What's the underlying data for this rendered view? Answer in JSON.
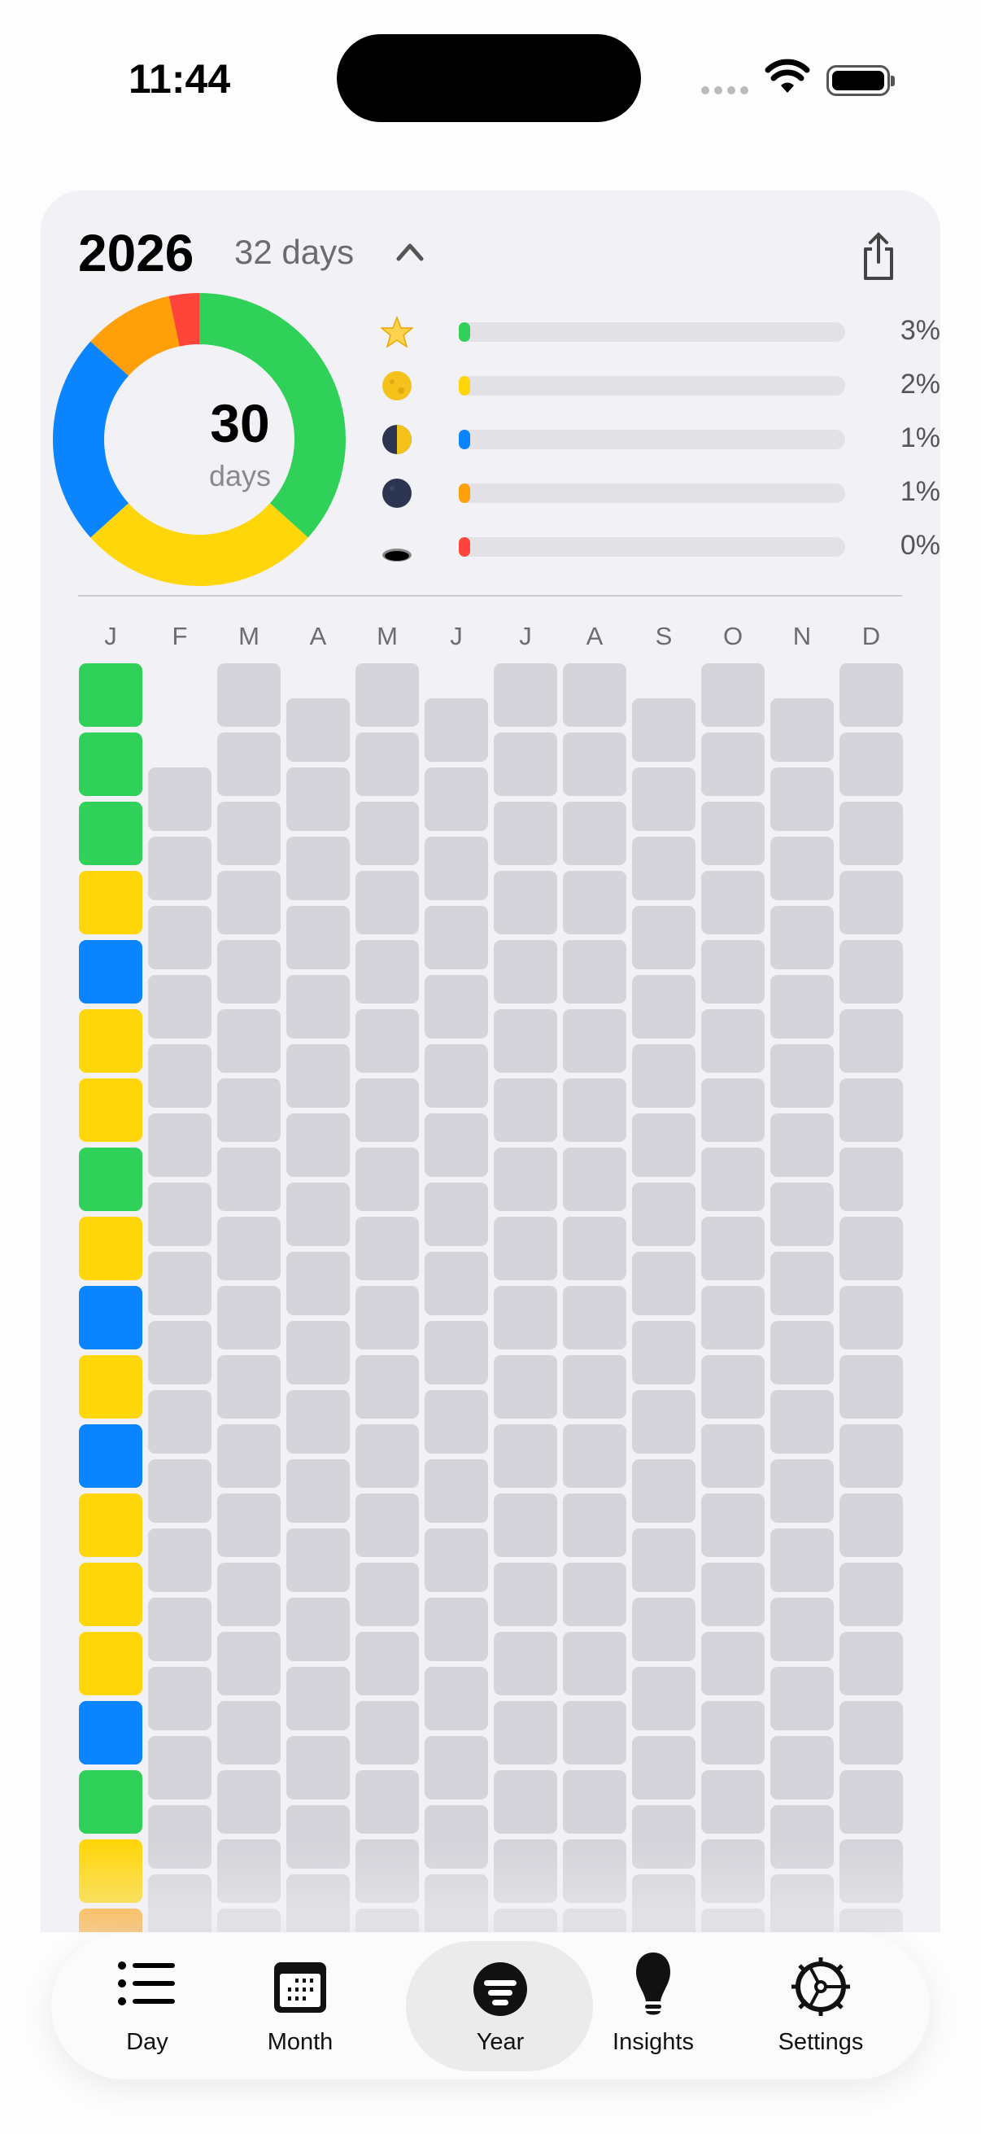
{
  "status": {
    "time": "11:44"
  },
  "header": {
    "year": "2026",
    "logged": "32 days"
  },
  "summary": {
    "count": "30",
    "unit": "days",
    "segments": [
      {
        "color": "#30d158",
        "days": 11
      },
      {
        "color": "#ffd60a",
        "days": 8
      },
      {
        "color": "#0a84ff",
        "days": 7
      },
      {
        "color": "#ff9f0a",
        "days": 3
      },
      {
        "color": "#ff453a",
        "days": 1
      }
    ]
  },
  "legend": [
    {
      "icon": "star-icon",
      "color": "#30d158",
      "pct": 3,
      "label": "3%"
    },
    {
      "icon": "full-moon-icon",
      "color": "#ffd60a",
      "pct": 2,
      "label": "2%"
    },
    {
      "icon": "half-moon-icon",
      "color": "#0a84ff",
      "pct": 1,
      "label": "1%"
    },
    {
      "icon": "new-moon-icon",
      "color": "#ff9f0a",
      "pct": 1,
      "label": "1%"
    },
    {
      "icon": "hole-icon",
      "color": "#ff453a",
      "pct": 0,
      "label": "0%"
    }
  ],
  "months": [
    {
      "l": "J",
      "d": 31
    },
    {
      "l": "F",
      "d": 28
    },
    {
      "l": "M",
      "d": 31
    },
    {
      "l": "A",
      "d": 30
    },
    {
      "l": "M",
      "d": 31
    },
    {
      "l": "J",
      "d": 30
    },
    {
      "l": "J",
      "d": 31
    },
    {
      "l": "A",
      "d": 31
    },
    {
      "l": "S",
      "d": 30
    },
    {
      "l": "O",
      "d": 31
    },
    {
      "l": "N",
      "d": 30
    },
    {
      "l": "D",
      "d": 31
    }
  ],
  "january_colors": [
    "#30d158",
    "#30d158",
    "#30d158",
    "#ffd60a",
    "#0a84ff",
    "#ffd60a",
    "#ffd60a",
    "#30d158",
    "#ffd60a",
    "#0a84ff",
    "#ffd60a",
    "#0a84ff",
    "#ffd60a",
    "#ffd60a",
    "#ffd60a",
    "#0a84ff",
    "#30d158",
    "#ffd60a",
    "#ff9f0a"
  ],
  "tabs": [
    {
      "label": "Day"
    },
    {
      "label": "Month"
    },
    {
      "label": "Year",
      "selected": true
    },
    {
      "label": "Insights"
    },
    {
      "label": "Settings"
    }
  ]
}
